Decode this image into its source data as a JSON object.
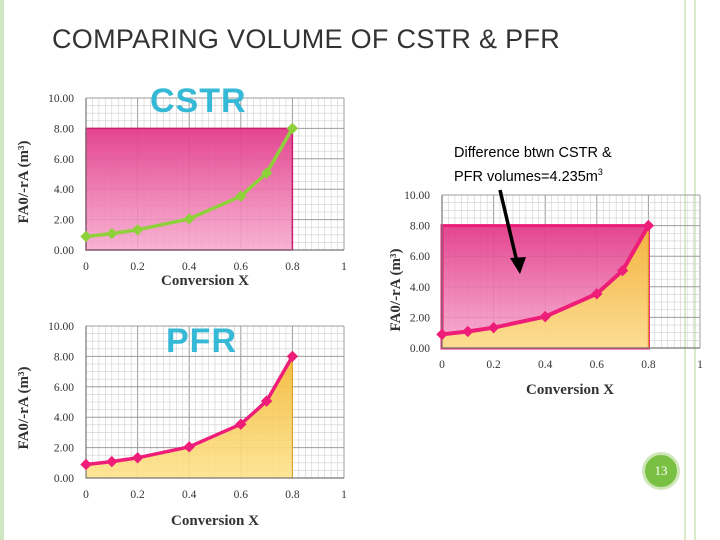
{
  "slide": {
    "title": "COMPARING VOLUME OF CSTR & PFR",
    "page_number": "13",
    "annotation_line1": "Difference btwn CSTR &",
    "annotation_line2": "PFR volumes=4.235m",
    "annotation_sup": "3"
  },
  "colors": {
    "cstr_line": "#8fd13b",
    "pfr_line": "#ee1e78",
    "cstr_fill": "#e8559a",
    "pfr_fill": "#f5c542",
    "plot_label": "#36b9d6"
  },
  "chart_data": [
    {
      "type": "line",
      "label": "CSTR",
      "shading": "rectangle",
      "x": [
        0,
        0.1,
        0.2,
        0.4,
        0.6,
        0.7,
        0.8
      ],
      "y": [
        0.89,
        1.08,
        1.33,
        2.05,
        3.54,
        5.06,
        8.0
      ],
      "xlabel": "Conversion X",
      "ylabel": "FA0/-rA (m³)",
      "xlim": [
        0,
        1
      ],
      "ylim": [
        0,
        10
      ],
      "xticks": [
        "0",
        "0.2",
        "0.4",
        "0.6",
        "0.8",
        "1"
      ],
      "yticks": [
        "0.00",
        "2.00",
        "4.00",
        "6.00",
        "8.00",
        "10.00"
      ],
      "grid": true
    },
    {
      "type": "line",
      "label": "PFR",
      "shading": "under-curve",
      "x": [
        0,
        0.1,
        0.2,
        0.4,
        0.6,
        0.7,
        0.8
      ],
      "y": [
        0.89,
        1.08,
        1.33,
        2.05,
        3.54,
        5.06,
        8.0
      ],
      "xlabel": "Conversion X",
      "ylabel": "FA0/-rA (m³)",
      "xlim": [
        0,
        1
      ],
      "ylim": [
        0,
        10
      ],
      "xticks": [
        "0",
        "0.2",
        "0.4",
        "0.6",
        "0.8",
        "1"
      ],
      "yticks": [
        "0.00",
        "2.00",
        "4.00",
        "6.00",
        "8.00",
        "10.00"
      ],
      "grid": true
    },
    {
      "type": "area",
      "label": "",
      "shading": "both",
      "x": [
        0,
        0.1,
        0.2,
        0.4,
        0.6,
        0.7,
        0.8
      ],
      "y": [
        0.89,
        1.08,
        1.33,
        2.05,
        3.54,
        5.06,
        8.0
      ],
      "xlabel": "Conversion X",
      "ylabel": "FA0/-rA (m³)",
      "xlim": [
        0,
        1
      ],
      "ylim": [
        0,
        10
      ],
      "xticks": [
        "0",
        "0.2",
        "0.4",
        "0.6",
        "0.8",
        "1"
      ],
      "yticks": [
        "0.00",
        "2.00",
        "4.00",
        "6.00",
        "8.00",
        "10.00"
      ],
      "grid": true
    }
  ]
}
